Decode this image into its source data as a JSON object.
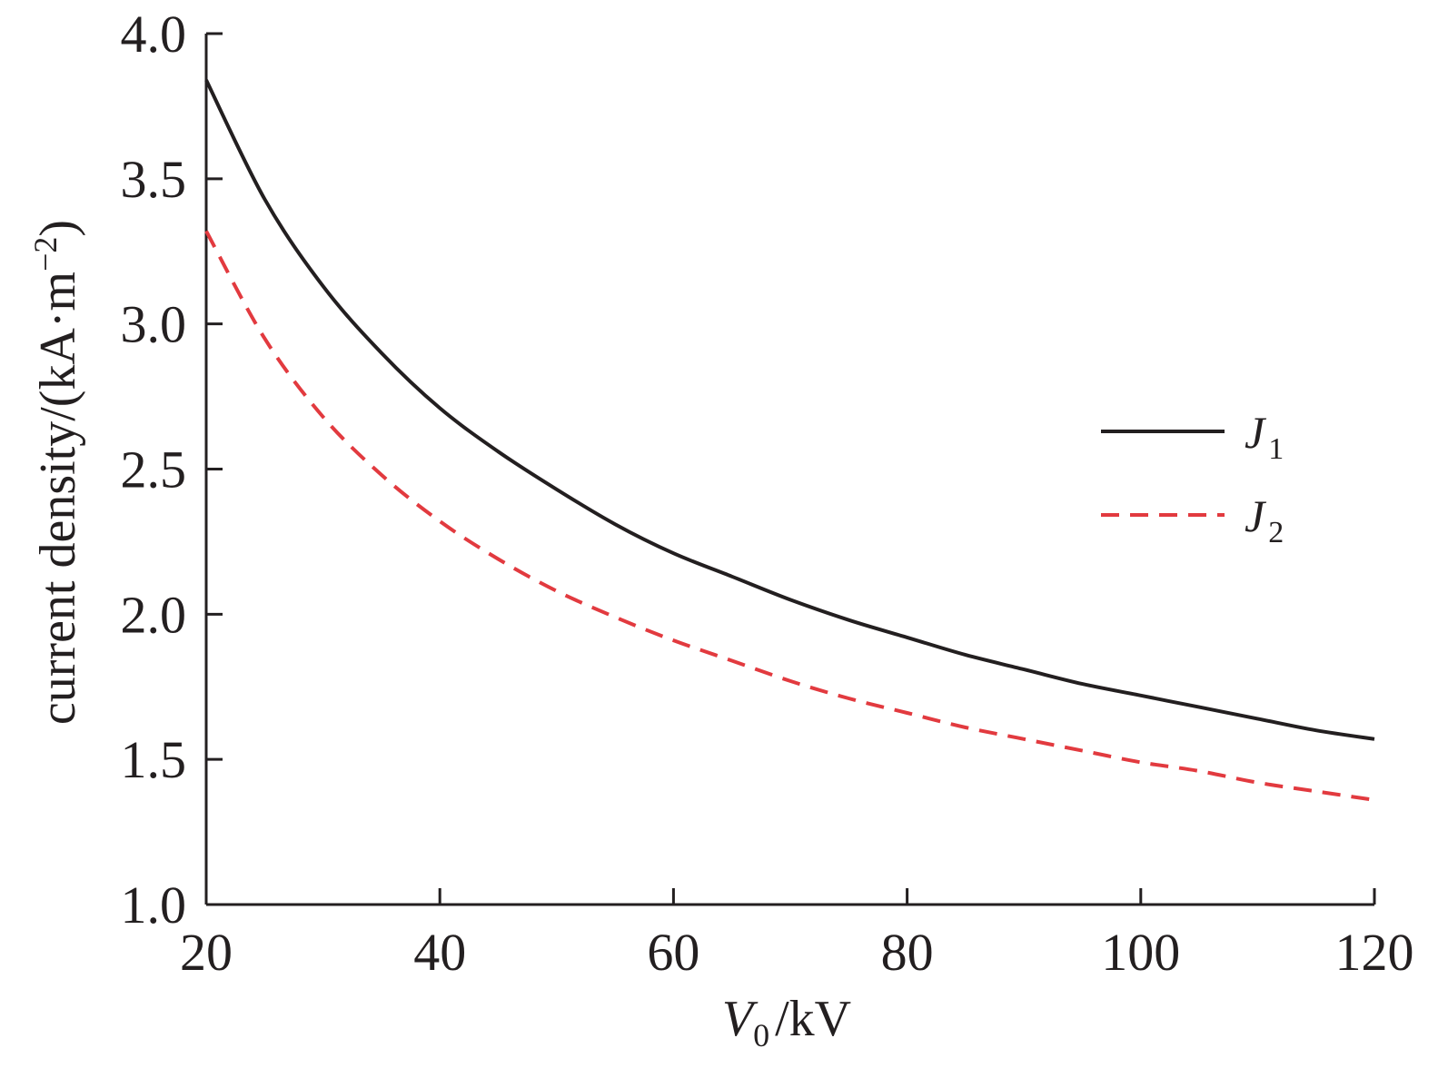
{
  "chart_data": {
    "type": "line",
    "title": "",
    "xlabel": {
      "main": "V",
      "sub": "0",
      "unit": "/kV"
    },
    "ylabel": {
      "text": "current density/(kA·m",
      "sup": "−2",
      "close": ")"
    },
    "xlim": [
      20,
      120
    ],
    "ylim": [
      1.0,
      4.0
    ],
    "xticks": [
      20,
      40,
      60,
      80,
      100,
      120
    ],
    "yticks": [
      "1.0",
      "1.5",
      "2.0",
      "2.5",
      "3.0",
      "3.5",
      "4.0"
    ],
    "grid": false,
    "legend_position": "right",
    "x": [
      20,
      25,
      30,
      35,
      40,
      45,
      50,
      55,
      60,
      65,
      70,
      75,
      80,
      85,
      90,
      95,
      100,
      105,
      110,
      115,
      120
    ],
    "series": [
      {
        "name": "J",
        "sub": "1",
        "color": "#231f20",
        "style": "solid",
        "values": [
          3.84,
          3.43,
          3.13,
          2.9,
          2.71,
          2.56,
          2.43,
          2.31,
          2.21,
          2.13,
          2.05,
          1.98,
          1.92,
          1.86,
          1.81,
          1.76,
          1.72,
          1.68,
          1.64,
          1.6,
          1.57
        ]
      },
      {
        "name": "J",
        "sub": "2",
        "color": "#e23a3f",
        "style": "dashed",
        "values": [
          3.32,
          2.95,
          2.68,
          2.48,
          2.32,
          2.19,
          2.08,
          1.99,
          1.91,
          1.84,
          1.77,
          1.71,
          1.66,
          1.61,
          1.57,
          1.53,
          1.49,
          1.46,
          1.42,
          1.39,
          1.36
        ]
      }
    ]
  }
}
